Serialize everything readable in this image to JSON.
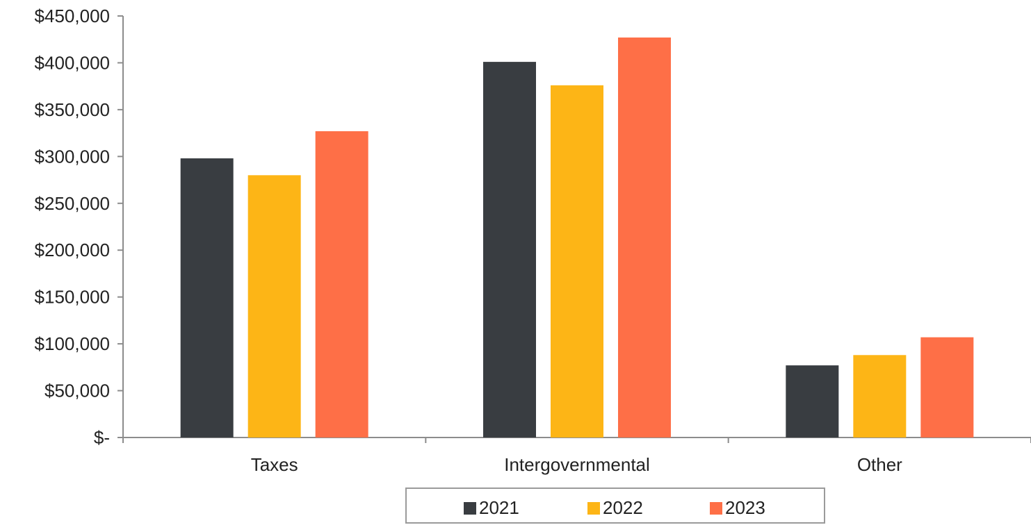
{
  "chart_data": {
    "type": "bar",
    "categories": [
      "Taxes",
      "Intergovernmental",
      "Other"
    ],
    "series": [
      {
        "name": "2021",
        "color": "#393d41",
        "values": [
          298000,
          401000,
          77000
        ]
      },
      {
        "name": "2022",
        "color": "#fdb516",
        "values": [
          280000,
          376000,
          88000
        ]
      },
      {
        "name": "2023",
        "color": "#fe6f47",
        "values": [
          327000,
          427000,
          107000
        ]
      }
    ],
    "ylim": [
      0,
      450000
    ],
    "yticks": [
      0,
      50000,
      100000,
      150000,
      200000,
      250000,
      300000,
      350000,
      400000,
      450000
    ],
    "ytick_labels": [
      "$-",
      "$50,000",
      "$100,000",
      "$150,000",
      "$200,000",
      "$250,000",
      "$300,000",
      "$350,000",
      "$400,000",
      "$450,000"
    ],
    "title": "",
    "xlabel": "",
    "ylabel": "",
    "grid": false,
    "legend_position": "bottom"
  }
}
